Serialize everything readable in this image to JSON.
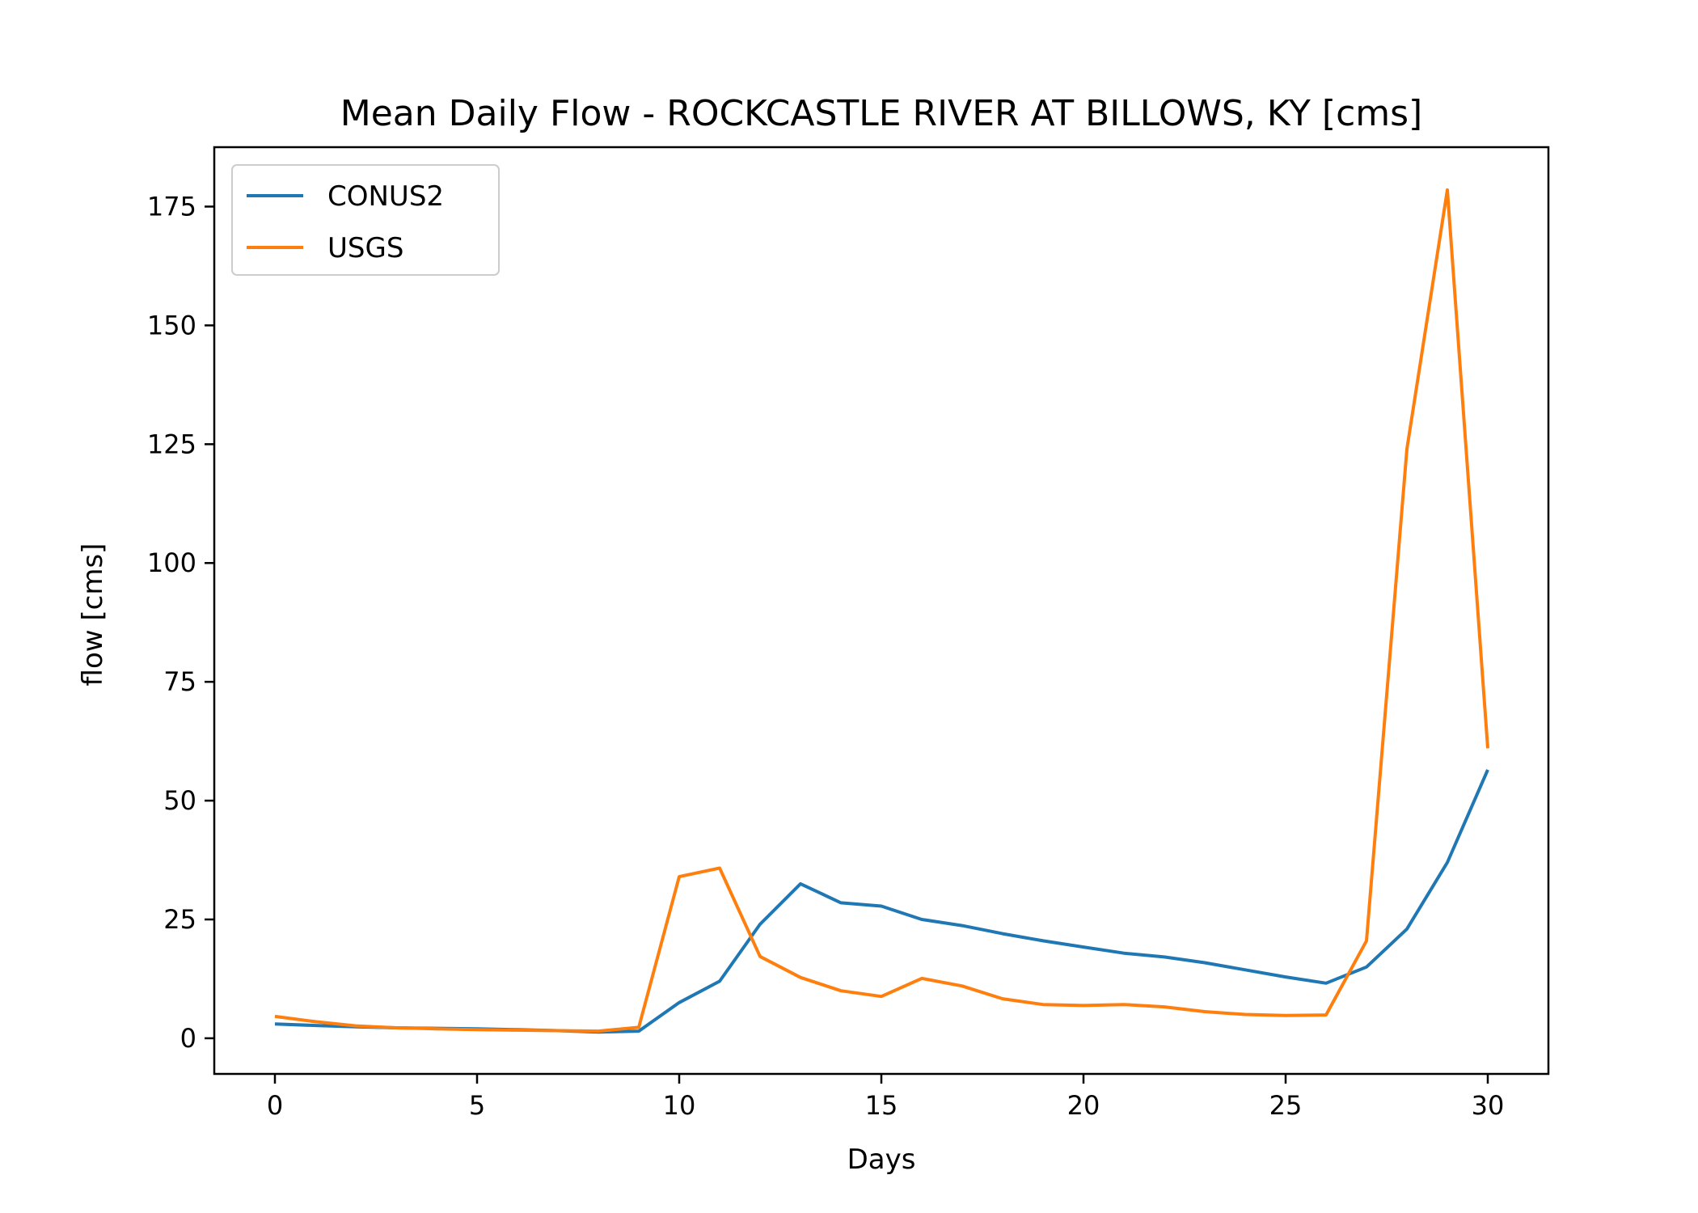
{
  "chart_data": {
    "type": "line",
    "title": "Mean Daily Flow - ROCKCASTLE RIVER AT BILLOWS, KY [cms]",
    "xlabel": "Days",
    "ylabel": "flow [cms]",
    "xlim": [
      -1.5,
      31.5
    ],
    "ylim": [
      -7.5,
      187.5
    ],
    "xticks": [
      0,
      5,
      10,
      15,
      20,
      25,
      30
    ],
    "yticks": [
      0,
      25,
      50,
      75,
      100,
      125,
      150,
      175
    ],
    "grid": false,
    "legend": "top-left",
    "x": [
      0,
      1,
      2,
      3,
      4,
      5,
      6,
      7,
      8,
      9,
      10,
      11,
      12,
      13,
      14,
      15,
      16,
      17,
      18,
      19,
      20,
      21,
      22,
      23,
      24,
      25,
      26,
      27,
      28,
      29,
      30
    ],
    "series": [
      {
        "name": "CONUS2",
        "color": "#1f77b4",
        "values": [
          3.0,
          2.7,
          2.4,
          2.2,
          2.1,
          2.0,
          1.8,
          1.6,
          1.3,
          1.5,
          7.5,
          12.0,
          24.0,
          32.5,
          28.5,
          27.8,
          25.0,
          23.7,
          22.0,
          20.5,
          19.2,
          17.9,
          17.1,
          15.9,
          14.4,
          12.9,
          11.6,
          15.0,
          23.0,
          37.0,
          56.5
        ]
      },
      {
        "name": "USGS",
        "color": "#ff7f0e",
        "values": [
          4.6,
          3.5,
          2.6,
          2.2,
          2.0,
          1.8,
          1.7,
          1.6,
          1.5,
          2.3,
          34.0,
          35.8,
          17.2,
          12.8,
          10.0,
          8.8,
          12.6,
          11.0,
          8.3,
          7.1,
          6.9,
          7.1,
          6.6,
          5.6,
          5.0,
          4.8,
          4.9,
          20.5,
          124.0,
          178.5,
          61.0
        ]
      }
    ]
  }
}
